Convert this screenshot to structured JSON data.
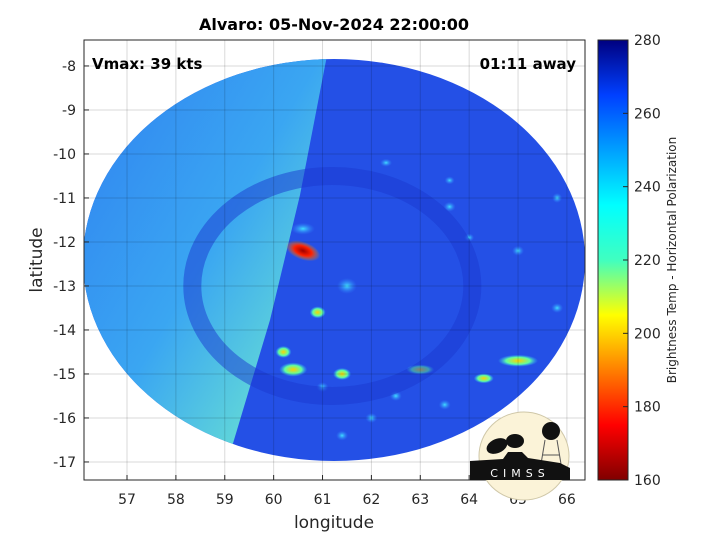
{
  "chart_data": {
    "type": "heatmap",
    "title": "Alvaro: 05-Nov-2024 22:00:00",
    "xlabel": "longitude",
    "ylabel": "latitude",
    "xlim": [
      56.12,
      66.37
    ],
    "ylim": [
      -17.41,
      -7.41
    ],
    "xticks": [
      57,
      58,
      59,
      60,
      61,
      62,
      63,
      64,
      65,
      66
    ],
    "yticks": [
      -8,
      -9,
      -10,
      -11,
      -12,
      -13,
      -14,
      -15,
      -16,
      -17
    ],
    "grid": true,
    "annotations": {
      "vmax": "Vmax: 39 kts",
      "time_away": "01:11 away"
    },
    "colorbar": {
      "label": "Brightness Temp - Horizontal Polarization",
      "range": [
        160,
        280
      ],
      "ticks": [
        280,
        260,
        240,
        220,
        200,
        180,
        160
      ],
      "colormap": "jet"
    },
    "features": {
      "swath_center": {
        "lon": 61.3,
        "lat": -12.6
      },
      "coldest_core": {
        "lon": 60.6,
        "lat": -12.2,
        "value": 170
      },
      "rainband_min_values": [
        {
          "lon": 60.4,
          "lat": -14.9,
          "value": 205
        },
        {
          "lon": 65.0,
          "lat": -14.7,
          "value": 200
        }
      ]
    },
    "logo": "CIMSS"
  },
  "colors": {
    "background_warm": "#2a55e8",
    "background_west": "#3a9cf0",
    "axis": "#262626",
    "grid": "#d9d9d9"
  }
}
